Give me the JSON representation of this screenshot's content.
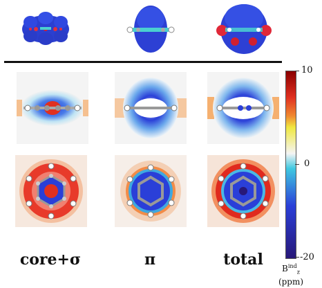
{
  "columns": [
    {
      "key": "core_sigma",
      "label": "core+σ"
    },
    {
      "key": "pi",
      "label": "π"
    },
    {
      "key": "total",
      "label": "total"
    }
  ],
  "colorbar": {
    "ticks": [
      "10",
      "0",
      "-20"
    ],
    "label_main": "B",
    "label_sup": "ind",
    "label_sub": "z",
    "label_unit": "(ppm)",
    "colors": {
      "top": "#8b0000",
      "upper": "#e03020",
      "orange": "#f08a30",
      "yellow": "#f0e840",
      "zero": "#f4f4f4",
      "cyan": "#40c8e0",
      "blue": "#2a3fd8",
      "bottom": "#281878"
    }
  }
}
